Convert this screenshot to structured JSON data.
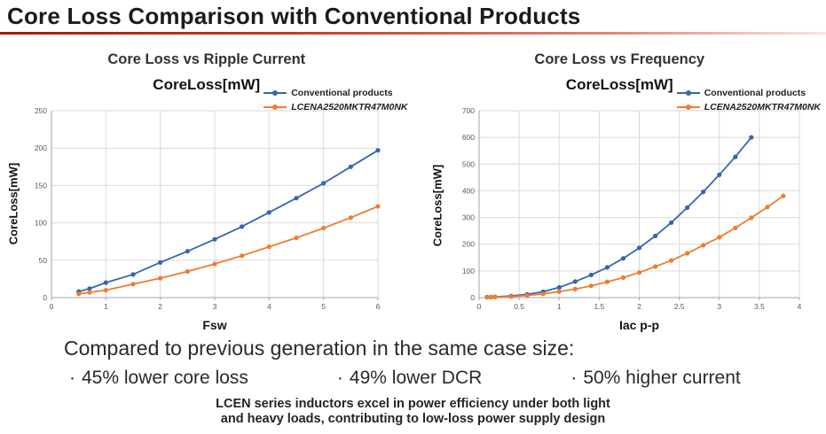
{
  "page": {
    "title": "Core Loss Comparison with Conventional Products",
    "accent_color": "#9e1b0e"
  },
  "colors": {
    "grid": "#d9d9d9",
    "axis": "#a6a6a6",
    "tick_text": "#595959",
    "series_blue": "#3566af",
    "series_orange": "#ed7d31"
  },
  "chart_data": [
    {
      "type": "line",
      "title": "Core Loss vs Ripple Current",
      "subtitle": "CoreLoss[mW]",
      "xlabel": "Fsw",
      "ylabel": "CoreLoss[mW]",
      "xlim": [
        0,
        6
      ],
      "ylim": [
        0,
        250
      ],
      "xticks": [
        0,
        1,
        2,
        3,
        4,
        5,
        6
      ],
      "yticks": [
        0,
        50,
        100,
        150,
        200,
        250
      ],
      "grid": true,
      "legend_position": "top-right",
      "series": [
        {
          "name": "Conventional products",
          "color": "#3566af",
          "italic": false,
          "x": [
            0.5,
            0.7,
            1,
            1.5,
            2,
            2.5,
            3,
            3.5,
            4,
            4.5,
            5,
            5.5,
            6
          ],
          "y": [
            8,
            12,
            20,
            31,
            47,
            62,
            78,
            95,
            114,
            133,
            153,
            175,
            197
          ]
        },
        {
          "name": "LCENA2520MKTR47M0NK",
          "color": "#ed7d31",
          "italic": true,
          "x": [
            0.5,
            0.7,
            1,
            1.5,
            2,
            2.5,
            3,
            3.5,
            4,
            4.5,
            5,
            5.5,
            6
          ],
          "y": [
            5,
            7,
            10,
            18,
            26,
            35,
            45,
            56,
            68,
            80,
            93,
            107,
            122
          ]
        }
      ]
    },
    {
      "type": "line",
      "title": "Core Loss vs Frequency",
      "subtitle": "CoreLoss[mW]",
      "xlabel": "Iac p-p",
      "ylabel": "CoreLoss[mW]",
      "xlim": [
        0,
        4
      ],
      "ylim": [
        0,
        700
      ],
      "xticks": [
        0,
        0.5,
        1,
        1.5,
        2,
        2.5,
        3,
        3.5,
        4
      ],
      "yticks": [
        0,
        100,
        200,
        300,
        400,
        500,
        600,
        700
      ],
      "grid": true,
      "legend_position": "top-right",
      "series": [
        {
          "name": "Conventional products",
          "color": "#3566af",
          "italic": false,
          "x": [
            0.1,
            0.15,
            0.2,
            0.4,
            0.6,
            0.8,
            1,
            1.2,
            1.4,
            1.6,
            1.8,
            2,
            2.2,
            2.4,
            2.6,
            2.8,
            3,
            3.2,
            3.4
          ],
          "y": [
            2,
            2,
            3,
            6,
            12,
            22,
            38,
            60,
            85,
            113,
            147,
            186,
            231,
            281,
            337,
            396,
            460,
            527,
            600
          ]
        },
        {
          "name": "LCENA2520MKTR47M0NK",
          "color": "#ed7d31",
          "italic": true,
          "x": [
            0.1,
            0.15,
            0.2,
            0.4,
            0.6,
            0.8,
            1,
            1.2,
            1.4,
            1.6,
            1.8,
            2,
            2.2,
            2.4,
            2.6,
            2.8,
            3,
            3.2,
            3.4,
            3.6,
            3.8
          ],
          "y": [
            1,
            2,
            2,
            4,
            8,
            14,
            23,
            32,
            44,
            59,
            75,
            94,
            116,
            139,
            166,
            196,
            226,
            261,
            299,
            339,
            381
          ]
        }
      ]
    }
  ],
  "summary": {
    "headline": "Compared to previous generation in the same case size:",
    "bullet_char": "·",
    "bullets": [
      "45% lower core loss",
      "49% lower DCR",
      "50% higher current"
    ],
    "footnote_line1": "LCEN series inductors excel in power efficiency under both light",
    "footnote_line2": "and heavy loads, contributing to low-loss power supply design"
  }
}
